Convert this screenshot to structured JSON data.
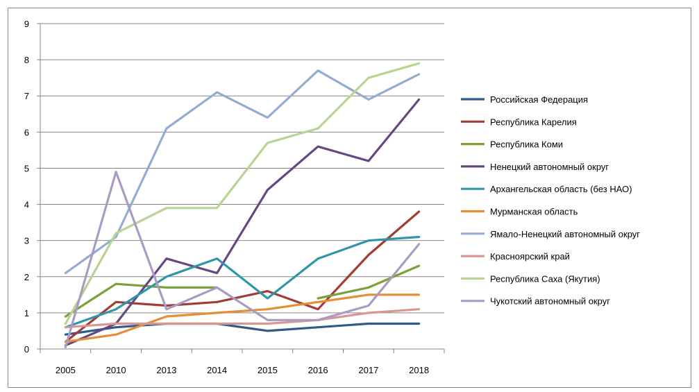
{
  "chart_data": {
    "type": "line",
    "title": "",
    "xlabel": "",
    "ylabel": "",
    "categories": [
      "2005",
      "2010",
      "2013",
      "2014",
      "2015",
      "2016",
      "2017",
      "2018"
    ],
    "ylim": [
      0,
      9
    ],
    "yticks": [
      0,
      1,
      2,
      3,
      4,
      5,
      6,
      7,
      8,
      9
    ],
    "grid": "horizontal",
    "legend_position": "right",
    "series": [
      {
        "name": "Российская Федерация",
        "color": "#2E5B8A",
        "values": [
          0.4,
          0.6,
          0.7,
          0.7,
          0.5,
          0.6,
          0.7,
          0.7
        ]
      },
      {
        "name": "Республика Карелия",
        "color": "#A33B37",
        "values": [
          0.2,
          1.3,
          1.2,
          1.3,
          1.6,
          1.1,
          2.6,
          3.8
        ]
      },
      {
        "name": "Республика Коми",
        "color": "#7DA03A",
        "values": [
          0.9,
          1.8,
          1.7,
          1.7,
          null,
          1.4,
          1.7,
          2.3
        ]
      },
      {
        "name": "Ненецкий автономный округ",
        "color": "#67477F",
        "values": [
          0.1,
          0.7,
          2.5,
          2.1,
          4.4,
          5.6,
          5.2,
          6.9
        ]
      },
      {
        "name": "Архангельская область (без НАО)",
        "color": "#2F95A8",
        "values": [
          0.6,
          1.1,
          2.0,
          2.5,
          1.4,
          2.5,
          3.0,
          3.1
        ]
      },
      {
        "name": "Мурманская область",
        "color": "#E58E35",
        "values": [
          0.2,
          0.4,
          0.9,
          1.0,
          1.1,
          1.3,
          1.5,
          1.5
        ]
      },
      {
        "name": "Ямало-Ненецкий автономный округ",
        "color": "#93ACD2",
        "values": [
          2.1,
          3.1,
          6.1,
          7.1,
          6.4,
          7.7,
          6.9,
          7.6
        ]
      },
      {
        "name": "Красноярский край",
        "color": "#D99794",
        "values": [
          0.6,
          0.7,
          0.7,
          0.7,
          0.7,
          0.8,
          1.0,
          1.1
        ]
      },
      {
        "name": "Республика Саха (Якутия)",
        "color": "#B9D393",
        "values": [
          0.7,
          3.2,
          3.9,
          3.9,
          5.7,
          6.1,
          7.5,
          7.9
        ]
      },
      {
        "name": "Чукотский автономный округ",
        "color": "#A99BC1",
        "values": [
          0.05,
          4.9,
          1.1,
          1.7,
          0.8,
          0.8,
          1.2,
          2.9
        ]
      }
    ]
  }
}
